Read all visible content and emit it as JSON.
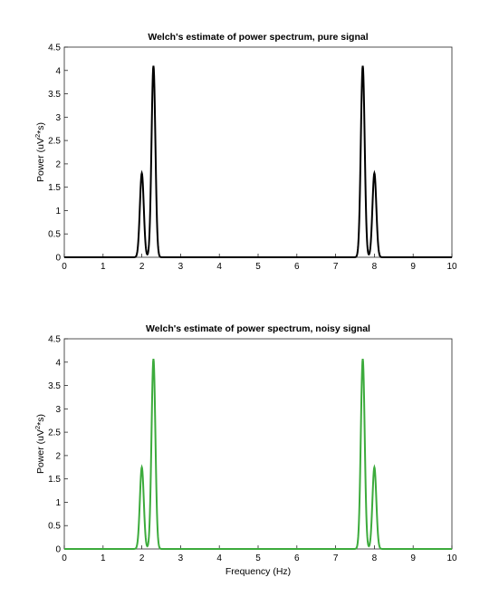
{
  "chart_data": [
    {
      "type": "line",
      "title": "Welch's estimate of power spectrum, pure signal",
      "xlabel": "",
      "ylabel_parts": [
        "Power (uV",
        "2",
        "*s)"
      ],
      "xlim": [
        0,
        10
      ],
      "ylim": [
        0,
        4.5
      ],
      "xticks": [
        0,
        1,
        2,
        3,
        4,
        5,
        6,
        7,
        8,
        9,
        10
      ],
      "yticks": [
        0,
        0.5,
        1,
        1.5,
        2,
        2.5,
        3,
        3.5,
        4,
        4.5
      ],
      "grid": false,
      "color": "#000000",
      "peaks": [
        {
          "x": 2.0,
          "y": 1.8,
          "width": 0.05
        },
        {
          "x": 2.3,
          "y": 4.1,
          "width": 0.05
        },
        {
          "x": 7.7,
          "y": 4.1,
          "width": 0.05
        },
        {
          "x": 8.0,
          "y": 1.8,
          "width": 0.05
        }
      ]
    },
    {
      "type": "line",
      "title": "Welch's estimate of power spectrum, noisy signal",
      "xlabel": "Frequency (Hz)",
      "ylabel_parts": [
        "Power (uV",
        "2",
        "*s)"
      ],
      "xlim": [
        0,
        10
      ],
      "ylim": [
        0,
        4.5
      ],
      "xticks": [
        0,
        1,
        2,
        3,
        4,
        5,
        6,
        7,
        8,
        9,
        10
      ],
      "yticks": [
        0,
        0.5,
        1,
        1.5,
        2,
        2.5,
        3,
        3.5,
        4,
        4.5
      ],
      "grid": false,
      "color": "#3cab3c",
      "peaks": [
        {
          "x": 2.0,
          "y": 1.75,
          "width": 0.05
        },
        {
          "x": 2.3,
          "y": 4.07,
          "width": 0.05
        },
        {
          "x": 7.7,
          "y": 4.07,
          "width": 0.05
        },
        {
          "x": 8.0,
          "y": 1.75,
          "width": 0.05
        }
      ]
    }
  ]
}
